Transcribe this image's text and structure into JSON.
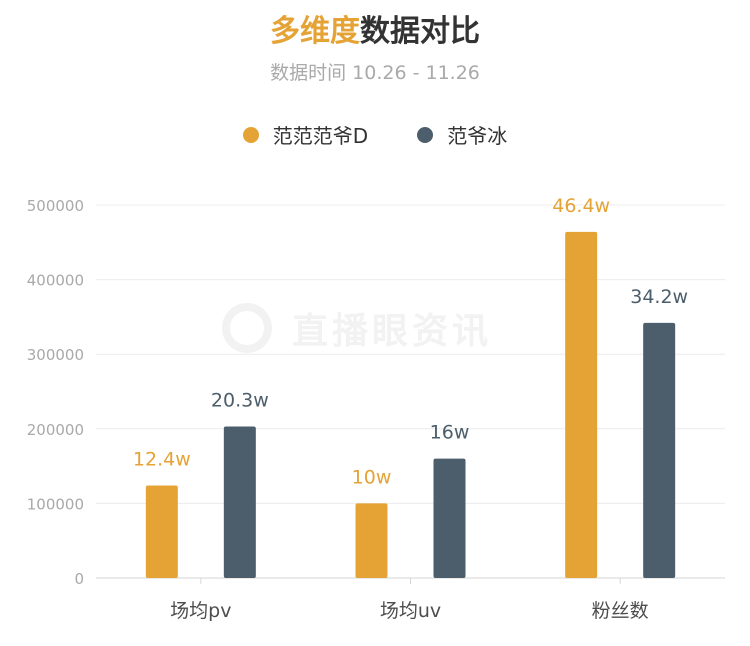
{
  "header": {
    "title_accent": "多维度",
    "title_rest": "数据对比",
    "subtitle": "数据时间 10.26 - 11.26"
  },
  "watermark": {
    "text": "直播眼资讯"
  },
  "colors": {
    "series1": "#E5A335",
    "series2": "#4C5E6B",
    "grid": "#ececec",
    "axis_text": "#a9a9a9"
  },
  "chart_data": {
    "type": "bar",
    "categories": [
      "场均pv",
      "场均uv",
      "粉丝数"
    ],
    "series": [
      {
        "name": "范范范爷D",
        "values": [
          124000,
          100000,
          464000
        ],
        "labels": [
          "12.4w",
          "10w",
          "46.4w"
        ]
      },
      {
        "name": "范爷冰",
        "values": [
          203000,
          160000,
          342000
        ],
        "labels": [
          "20.3w",
          "16w",
          "34.2w"
        ]
      }
    ],
    "ylim": [
      0,
      500000
    ],
    "yticks": [
      0,
      100000,
      200000,
      300000,
      400000,
      500000
    ],
    "grid": true,
    "legend": "top-center"
  }
}
